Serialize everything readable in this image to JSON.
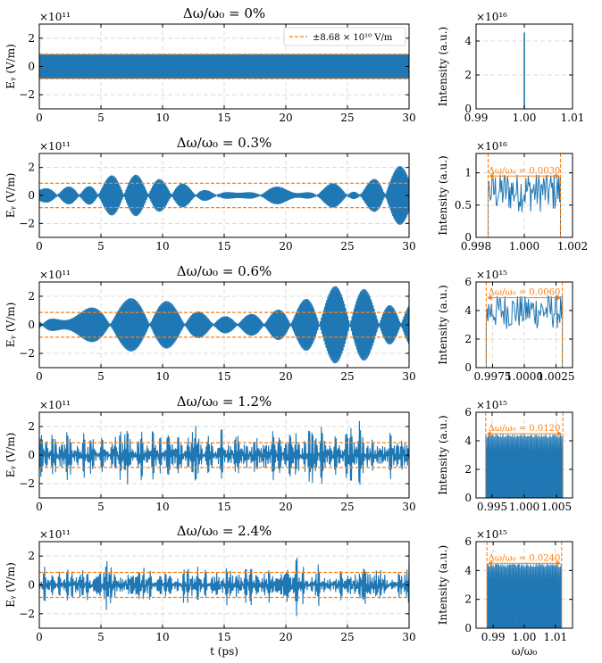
{
  "colors": {
    "signal": "#1f77b4",
    "threshold": "#ff7f0e",
    "grid": "#d4d4d4"
  },
  "legend": {
    "label": "±8.68 × 10¹⁰ V/m"
  },
  "chart_data": [
    {
      "id": "t0",
      "type": "line",
      "title": "Δω/ω₀ = 0%",
      "xlabel": "",
      "ylabel": "Eᵧ (V/m)",
      "y_exponent": "×10¹¹",
      "xlim": [
        0,
        30
      ],
      "ylim": [
        -3,
        3
      ],
      "xticks": [
        "0",
        "5",
        "10",
        "15",
        "20",
        "25",
        "30"
      ],
      "yticks": [
        "−2",
        "0",
        "2"
      ],
      "threshold": 0.868,
      "envelope": "constant",
      "amplitude": 0.868,
      "grid": true
    },
    {
      "id": "s0",
      "type": "line",
      "xlabel": "",
      "ylabel": "Intensity (a.u.)",
      "y_exponent": "×10¹⁶",
      "xlim": [
        0.99,
        1.01
      ],
      "ylim": [
        0,
        5
      ],
      "xticks": [
        "0.99",
        "1.00",
        "1.01"
      ],
      "yticks": [
        "0",
        "2",
        "4"
      ],
      "spectrum": "delta",
      "peak": 4.5,
      "center": 1.0,
      "grid": true
    },
    {
      "id": "t1",
      "type": "line",
      "title": "Δω/ω₀ = 0.3%",
      "xlabel": "",
      "ylabel": "Eᵧ (V/m)",
      "y_exponent": "×10¹¹",
      "xlim": [
        0,
        30
      ],
      "ylim": [
        -3,
        3
      ],
      "xticks": [
        "0",
        "5",
        "10",
        "15",
        "20",
        "25",
        "30"
      ],
      "yticks": [
        "−2",
        "0",
        "2"
      ],
      "threshold": 0.868,
      "envelope": "beat",
      "amplitude": 2.1,
      "grid": true
    },
    {
      "id": "s1",
      "type": "line",
      "xlabel": "",
      "ylabel": "Intensity (a.u.)",
      "y_exponent": "×10¹⁶",
      "xlim": [
        0.998,
        1.002
      ],
      "ylim": [
        0,
        1.3
      ],
      "xticks": [
        "0.998",
        "1.000",
        "1.002"
      ],
      "yticks": [
        "0",
        "0.5",
        "1"
      ],
      "spectrum": "band",
      "band": [
        0.9985,
        1.0015
      ],
      "annotation": "Δω/ω₀ = 0.0030",
      "level": 0.95,
      "mean": 0.62,
      "grid": true
    },
    {
      "id": "t2",
      "type": "line",
      "title": "Δω/ω₀ = 0.6%",
      "xlabel": "",
      "ylabel": "Eᵧ (V/m)",
      "y_exponent": "×10¹¹",
      "xlim": [
        0,
        30
      ],
      "ylim": [
        -3,
        3
      ],
      "xticks": [
        "0",
        "5",
        "10",
        "15",
        "20",
        "25",
        "30"
      ],
      "yticks": [
        "−2",
        "0",
        "2"
      ],
      "threshold": 0.868,
      "envelope": "beat",
      "amplitude": 2.7,
      "grid": true
    },
    {
      "id": "s2",
      "type": "line",
      "xlabel": "",
      "ylabel": "Intensity (a.u.)",
      "y_exponent": "×10¹⁵",
      "xlim": [
        0.9962,
        1.0038
      ],
      "ylim": [
        0,
        6
      ],
      "xticks": [
        "0.9975",
        "1.0000",
        "1.0025"
      ],
      "xtick_values": [
        0.9975,
        1.0,
        1.0025
      ],
      "yticks": [
        "0",
        "2",
        "4",
        "6"
      ],
      "spectrum": "band",
      "band": [
        0.997,
        1.003
      ],
      "annotation": "Δω/ω₀ = 0.0060",
      "level": 4.9,
      "mean": 3.6,
      "grid": true
    },
    {
      "id": "t3",
      "type": "line",
      "title": "Δω/ω₀ = 1.2%",
      "xlabel": "",
      "ylabel": "Eᵧ (V/m)",
      "y_exponent": "×10¹¹",
      "xlim": [
        0,
        30
      ],
      "ylim": [
        -3,
        3
      ],
      "xticks": [
        "0",
        "5",
        "10",
        "15",
        "20",
        "25",
        "30"
      ],
      "yticks": [
        "−2",
        "0",
        "2"
      ],
      "threshold": 0.868,
      "envelope": "noise",
      "amplitude": 2.5,
      "grid": true
    },
    {
      "id": "s3",
      "type": "line",
      "xlabel": "",
      "ylabel": "Intensity (a.u.)",
      "y_exponent": "×10¹⁵",
      "xlim": [
        0.9925,
        1.0075
      ],
      "ylim": [
        0,
        6
      ],
      "xticks": [
        "0.995",
        "1.000",
        "1.005"
      ],
      "xtick_values": [
        0.995,
        1.0,
        1.005
      ],
      "yticks": [
        "0",
        "2",
        "4",
        "6"
      ],
      "spectrum": "comb",
      "band": [
        0.994,
        1.006
      ],
      "annotation": "Δω/ω₀ = 0.0120",
      "level": 4.5,
      "mean": 4.3,
      "grid": true
    },
    {
      "id": "t4",
      "type": "line",
      "title": "Δω/ω₀ = 2.4%",
      "xlabel": "t (ps)",
      "ylabel": "Eᵧ (V/m)",
      "y_exponent": "×10¹¹",
      "xlim": [
        0,
        30
      ],
      "ylim": [
        -3,
        3
      ],
      "xticks": [
        "0",
        "5",
        "10",
        "15",
        "20",
        "25",
        "30"
      ],
      "yticks": [
        "−2",
        "0",
        "2"
      ],
      "threshold": 0.868,
      "envelope": "noise",
      "amplitude": 2.2,
      "grid": true
    },
    {
      "id": "s4",
      "type": "line",
      "xlabel": "ω/ω₀",
      "ylabel": "Intensity (a.u.)",
      "y_exponent": "×10¹⁵",
      "xlim": [
        0.9845,
        1.0155
      ],
      "ylim": [
        0,
        6
      ],
      "xticks": [
        "0.99",
        "1.00",
        "1.01"
      ],
      "xtick_values": [
        0.99,
        1.0,
        1.01
      ],
      "yticks": [
        "0",
        "2",
        "4",
        "6"
      ],
      "spectrum": "comb",
      "band": [
        0.988,
        1.012
      ],
      "annotation": "Δω/ω₀ = 0.0240",
      "level": 4.5,
      "mean": 4.3,
      "grid": true
    }
  ]
}
